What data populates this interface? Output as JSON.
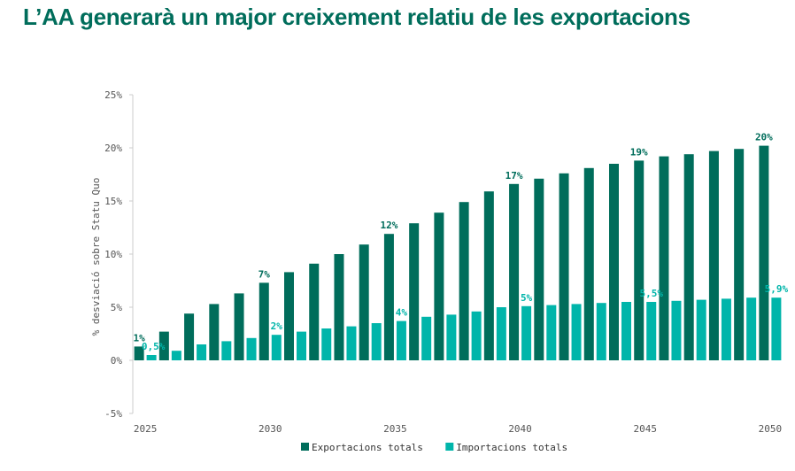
{
  "title": "L’AA generarà un major creixement relatiu de les exportacions",
  "chart_data": {
    "type": "bar",
    "title": "L’AA generarà un major creixement relatiu de les exportacions",
    "ylabel": "% desviació sobre Statu Quo",
    "xlabel": "",
    "ylim": [
      -5,
      25
    ],
    "yticks": [
      "25%",
      "20%",
      "15%",
      "10%",
      "5%",
      "0%",
      "-5%"
    ],
    "ytick_values": [
      25,
      20,
      15,
      10,
      5,
      0,
      -5
    ],
    "categories": [
      2025,
      2026,
      2027,
      2028,
      2029,
      2030,
      2031,
      2032,
      2033,
      2034,
      2035,
      2036,
      2037,
      2038,
      2039,
      2040,
      2041,
      2042,
      2043,
      2044,
      2045,
      2046,
      2047,
      2048,
      2049,
      2050
    ],
    "xtick_labels": [
      "2025",
      "2030",
      "2035",
      "2040",
      "2045",
      "2050"
    ],
    "xtick_values": [
      2025,
      2030,
      2035,
      2040,
      2045,
      2050
    ],
    "series": [
      {
        "name": "Exportacions totals",
        "color": "#006d5b",
        "values": [
          1.3,
          2.7,
          4.4,
          5.3,
          6.3,
          7.3,
          8.3,
          9.1,
          10.0,
          10.9,
          11.9,
          12.9,
          13.9,
          14.9,
          15.9,
          16.6,
          17.1,
          17.6,
          18.1,
          18.5,
          18.8,
          19.2,
          19.4,
          19.7,
          19.9,
          20.2
        ],
        "labels": {
          "2025": "1%",
          "2030": "7%",
          "2035": "12%",
          "2040": "17%",
          "2045": "19%",
          "2050": "20%"
        }
      },
      {
        "name": "Importacions totals",
        "color": "#00b5aa",
        "values": [
          0.5,
          0.9,
          1.5,
          1.8,
          2.1,
          2.4,
          2.7,
          3.0,
          3.2,
          3.5,
          3.7,
          4.1,
          4.3,
          4.6,
          5.0,
          5.1,
          5.2,
          5.3,
          5.4,
          5.5,
          5.5,
          5.6,
          5.7,
          5.8,
          5.9,
          5.9
        ],
        "labels": {
          "2025": "0,5%",
          "2030": "2%",
          "2035": "4%",
          "2040": "5%",
          "2045": "5,5%",
          "2050": "5,9%"
        }
      }
    ],
    "grid": false,
    "legend_position": "bottom-center"
  }
}
